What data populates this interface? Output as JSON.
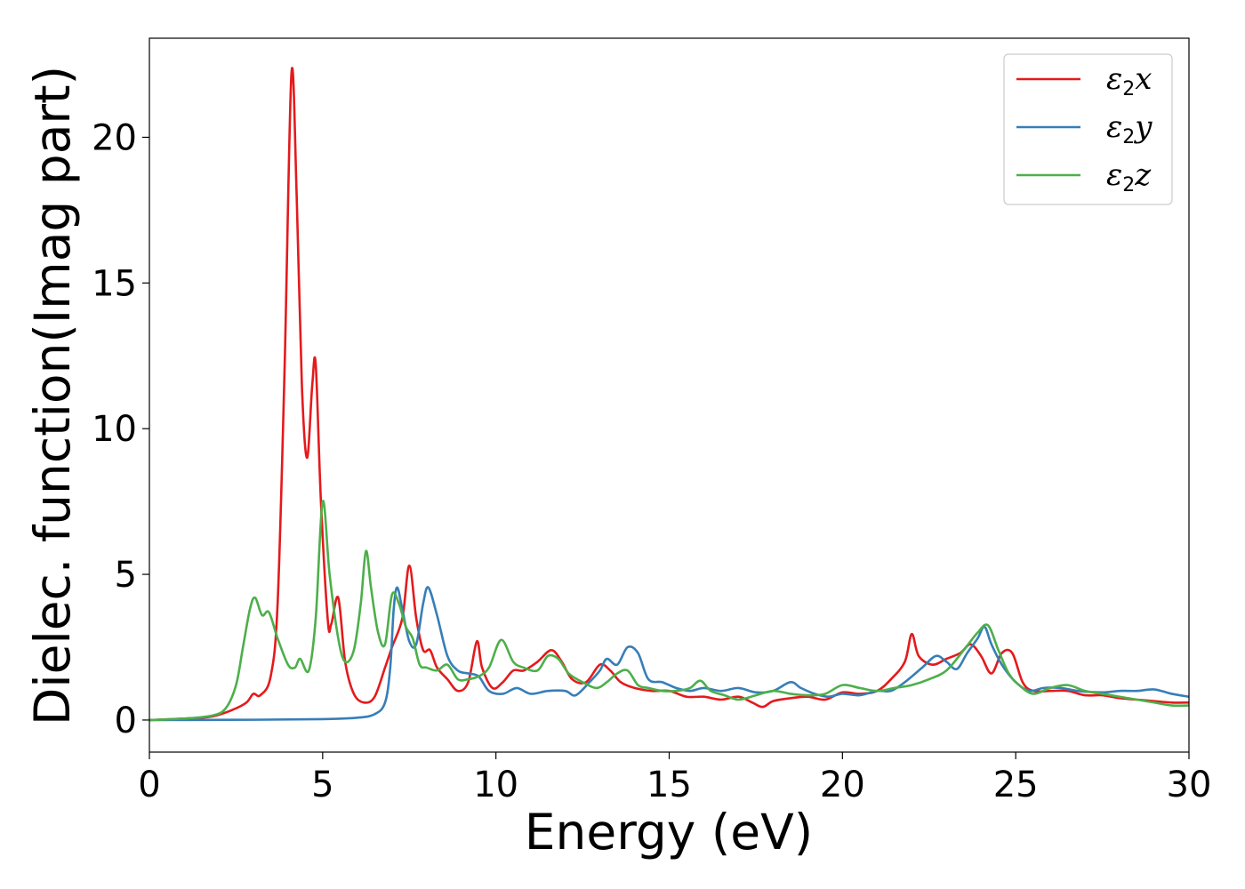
{
  "chart_data": {
    "type": "line",
    "xlabel": "Energy (eV)",
    "ylabel": "Dielec. function(Imag part)",
    "xlim": [
      0,
      30
    ],
    "ylim": [
      -1.1,
      23.4
    ],
    "xticks": [
      0,
      5,
      10,
      15,
      20,
      25,
      30
    ],
    "yticks": [
      0,
      5,
      10,
      15,
      20
    ],
    "grid": false,
    "legend_position": "top-right",
    "series": [
      {
        "name": "ε2x",
        "legend_symbol": "ε",
        "legend_sub": "2",
        "legend_var": "x",
        "color": "#e41a1c",
        "points": [
          [
            0,
            0
          ],
          [
            1,
            0.05
          ],
          [
            1.8,
            0.12
          ],
          [
            2.4,
            0.35
          ],
          [
            2.8,
            0.6
          ],
          [
            3.0,
            0.9
          ],
          [
            3.2,
            0.85
          ],
          [
            3.5,
            1.5
          ],
          [
            3.7,
            4.0
          ],
          [
            3.9,
            12.0
          ],
          [
            4.1,
            22.2
          ],
          [
            4.25,
            18.0
          ],
          [
            4.4,
            11.5
          ],
          [
            4.55,
            9.0
          ],
          [
            4.7,
            11.5
          ],
          [
            4.8,
            12.2
          ],
          [
            4.95,
            7.5
          ],
          [
            5.15,
            3.4
          ],
          [
            5.25,
            3.3
          ],
          [
            5.45,
            4.2
          ],
          [
            5.65,
            2.0
          ],
          [
            5.9,
            0.9
          ],
          [
            6.2,
            0.6
          ],
          [
            6.5,
            0.8
          ],
          [
            6.8,
            1.8
          ],
          [
            7.0,
            2.5
          ],
          [
            7.3,
            3.5
          ],
          [
            7.5,
            5.3
          ],
          [
            7.7,
            3.5
          ],
          [
            7.9,
            2.4
          ],
          [
            8.1,
            2.4
          ],
          [
            8.3,
            1.8
          ],
          [
            8.6,
            1.4
          ],
          [
            8.9,
            1.0
          ],
          [
            9.2,
            1.3
          ],
          [
            9.45,
            2.7
          ],
          [
            9.6,
            1.8
          ],
          [
            9.9,
            1.1
          ],
          [
            10.2,
            1.3
          ],
          [
            10.5,
            1.7
          ],
          [
            10.8,
            1.7
          ],
          [
            11.2,
            2.0
          ],
          [
            11.6,
            2.4
          ],
          [
            11.9,
            2.0
          ],
          [
            12.2,
            1.4
          ],
          [
            12.6,
            1.3
          ],
          [
            13.0,
            1.9
          ],
          [
            13.3,
            1.7
          ],
          [
            13.6,
            1.3
          ],
          [
            14.0,
            1.1
          ],
          [
            14.5,
            1.0
          ],
          [
            15.0,
            1.0
          ],
          [
            15.5,
            0.8
          ],
          [
            16.0,
            0.8
          ],
          [
            16.5,
            0.7
          ],
          [
            17.0,
            0.8
          ],
          [
            17.4,
            0.6
          ],
          [
            17.7,
            0.45
          ],
          [
            18.0,
            0.65
          ],
          [
            18.5,
            0.75
          ],
          [
            19.0,
            0.8
          ],
          [
            19.5,
            0.7
          ],
          [
            20.0,
            0.95
          ],
          [
            20.5,
            0.9
          ],
          [
            21.0,
            1.0
          ],
          [
            21.4,
            1.4
          ],
          [
            21.8,
            2.0
          ],
          [
            22.0,
            2.95
          ],
          [
            22.2,
            2.2
          ],
          [
            22.6,
            1.9
          ],
          [
            23.0,
            2.1
          ],
          [
            23.4,
            2.3
          ],
          [
            23.7,
            2.6
          ],
          [
            24.0,
            2.2
          ],
          [
            24.3,
            1.6
          ],
          [
            24.6,
            2.3
          ],
          [
            24.9,
            2.3
          ],
          [
            25.2,
            1.3
          ],
          [
            25.5,
            1.0
          ],
          [
            26.0,
            1.0
          ],
          [
            26.5,
            1.0
          ],
          [
            27.0,
            0.85
          ],
          [
            27.5,
            0.85
          ],
          [
            28.0,
            0.75
          ],
          [
            28.5,
            0.7
          ],
          [
            29.0,
            0.65
          ],
          [
            29.5,
            0.6
          ],
          [
            30.0,
            0.6
          ]
        ]
      },
      {
        "name": "ε2y",
        "legend_symbol": "ε",
        "legend_sub": "2",
        "legend_var": "y",
        "color": "#377eb8",
        "points": [
          [
            0,
            0
          ],
          [
            3,
            0.01
          ],
          [
            5,
            0.03
          ],
          [
            6,
            0.08
          ],
          [
            6.5,
            0.2
          ],
          [
            6.8,
            0.6
          ],
          [
            6.95,
            1.8
          ],
          [
            7.05,
            3.8
          ],
          [
            7.15,
            4.55
          ],
          [
            7.3,
            3.8
          ],
          [
            7.5,
            2.7
          ],
          [
            7.7,
            2.6
          ],
          [
            7.9,
            4.0
          ],
          [
            8.05,
            4.55
          ],
          [
            8.3,
            3.6
          ],
          [
            8.6,
            2.2
          ],
          [
            8.9,
            1.7
          ],
          [
            9.2,
            1.6
          ],
          [
            9.5,
            1.5
          ],
          [
            9.8,
            1.0
          ],
          [
            10.2,
            0.9
          ],
          [
            10.6,
            1.1
          ],
          [
            11.0,
            0.9
          ],
          [
            11.5,
            1.0
          ],
          [
            12.0,
            1.0
          ],
          [
            12.3,
            0.85
          ],
          [
            12.7,
            1.3
          ],
          [
            13.0,
            1.7
          ],
          [
            13.2,
            2.1
          ],
          [
            13.5,
            1.9
          ],
          [
            13.8,
            2.5
          ],
          [
            14.1,
            2.3
          ],
          [
            14.4,
            1.4
          ],
          [
            14.8,
            1.3
          ],
          [
            15.2,
            1.1
          ],
          [
            15.6,
            1.0
          ],
          [
            16.0,
            1.1
          ],
          [
            16.5,
            1.0
          ],
          [
            17.0,
            1.1
          ],
          [
            17.5,
            0.95
          ],
          [
            18.0,
            1.0
          ],
          [
            18.5,
            1.3
          ],
          [
            18.8,
            1.1
          ],
          [
            19.2,
            0.9
          ],
          [
            19.6,
            0.8
          ],
          [
            20.0,
            0.9
          ],
          [
            20.5,
            0.85
          ],
          [
            21.0,
            1.0
          ],
          [
            21.4,
            1.0
          ],
          [
            21.8,
            1.3
          ],
          [
            22.3,
            1.8
          ],
          [
            22.7,
            2.2
          ],
          [
            23.0,
            2.0
          ],
          [
            23.3,
            1.75
          ],
          [
            23.6,
            2.3
          ],
          [
            23.9,
            2.8
          ],
          [
            24.1,
            3.2
          ],
          [
            24.3,
            2.6
          ],
          [
            24.6,
            1.9
          ],
          [
            25.0,
            1.3
          ],
          [
            25.4,
            1.0
          ],
          [
            25.8,
            1.1
          ],
          [
            26.3,
            1.1
          ],
          [
            26.8,
            1.0
          ],
          [
            27.5,
            0.95
          ],
          [
            28.0,
            1.0
          ],
          [
            28.5,
            1.0
          ],
          [
            29.0,
            1.05
          ],
          [
            29.5,
            0.9
          ],
          [
            30.0,
            0.8
          ]
        ]
      },
      {
        "name": "ε2z",
        "legend_symbol": "ε",
        "legend_sub": "2",
        "legend_var": "z",
        "color": "#4daf4a",
        "points": [
          [
            0,
            0
          ],
          [
            1,
            0.05
          ],
          [
            1.8,
            0.15
          ],
          [
            2.2,
            0.4
          ],
          [
            2.5,
            1.2
          ],
          [
            2.7,
            2.5
          ],
          [
            2.9,
            3.8
          ],
          [
            3.05,
            4.2
          ],
          [
            3.25,
            3.6
          ],
          [
            3.45,
            3.7
          ],
          [
            3.7,
            2.8
          ],
          [
            4.0,
            1.9
          ],
          [
            4.2,
            1.8
          ],
          [
            4.35,
            2.1
          ],
          [
            4.6,
            1.7
          ],
          [
            4.8,
            3.5
          ],
          [
            5.0,
            7.5
          ],
          [
            5.2,
            5.0
          ],
          [
            5.45,
            2.8
          ],
          [
            5.65,
            2.0
          ],
          [
            5.9,
            2.4
          ],
          [
            6.1,
            4.0
          ],
          [
            6.25,
            5.8
          ],
          [
            6.4,
            4.5
          ],
          [
            6.6,
            3.0
          ],
          [
            6.8,
            2.6
          ],
          [
            7.0,
            4.3
          ],
          [
            7.2,
            4.0
          ],
          [
            7.4,
            3.2
          ],
          [
            7.6,
            2.8
          ],
          [
            7.8,
            1.9
          ],
          [
            8.0,
            1.8
          ],
          [
            8.3,
            1.7
          ],
          [
            8.6,
            1.9
          ],
          [
            8.9,
            1.4
          ],
          [
            9.2,
            1.4
          ],
          [
            9.5,
            1.5
          ],
          [
            9.8,
            1.8
          ],
          [
            10.15,
            2.75
          ],
          [
            10.5,
            2.0
          ],
          [
            10.8,
            1.8
          ],
          [
            11.2,
            1.7
          ],
          [
            11.5,
            2.2
          ],
          [
            11.8,
            2.1
          ],
          [
            12.1,
            1.6
          ],
          [
            12.5,
            1.3
          ],
          [
            12.9,
            1.1
          ],
          [
            13.2,
            1.3
          ],
          [
            13.5,
            1.6
          ],
          [
            13.8,
            1.7
          ],
          [
            14.1,
            1.2
          ],
          [
            14.4,
            1.1
          ],
          [
            14.8,
            1.0
          ],
          [
            15.2,
            1.0
          ],
          [
            15.6,
            1.1
          ],
          [
            15.9,
            1.35
          ],
          [
            16.2,
            1.0
          ],
          [
            16.6,
            0.85
          ],
          [
            17.0,
            0.7
          ],
          [
            17.5,
            0.85
          ],
          [
            18.0,
            1.0
          ],
          [
            18.5,
            0.9
          ],
          [
            19.0,
            0.85
          ],
          [
            19.5,
            0.9
          ],
          [
            20.0,
            1.2
          ],
          [
            20.5,
            1.1
          ],
          [
            21.0,
            1.0
          ],
          [
            21.5,
            1.1
          ],
          [
            22.0,
            1.2
          ],
          [
            22.5,
            1.4
          ],
          [
            23.0,
            1.7
          ],
          [
            23.5,
            2.4
          ],
          [
            23.9,
            3.0
          ],
          [
            24.2,
            3.25
          ],
          [
            24.5,
            2.4
          ],
          [
            24.8,
            1.6
          ],
          [
            25.1,
            1.2
          ],
          [
            25.5,
            0.9
          ],
          [
            26.0,
            1.1
          ],
          [
            26.5,
            1.2
          ],
          [
            27.0,
            1.0
          ],
          [
            27.5,
            0.9
          ],
          [
            28.0,
            0.8
          ],
          [
            28.5,
            0.7
          ],
          [
            29.0,
            0.6
          ],
          [
            29.5,
            0.5
          ],
          [
            30.0,
            0.5
          ]
        ]
      }
    ]
  }
}
